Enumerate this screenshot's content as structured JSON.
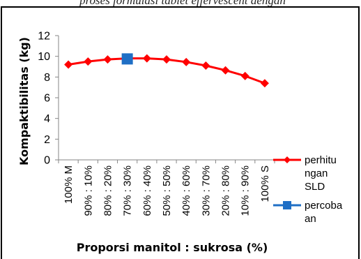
{
  "caption": "proses formulasi tablet effervescent dengan",
  "chart_data": {
    "type": "line",
    "categories": [
      "100% M",
      "90% : 10%",
      "80% : 20%",
      "70% : 30%",
      "60% : 40%",
      "50% : 50%",
      "40% : 60%",
      "30% : 70%",
      "20% : 80%",
      "10% : 90%",
      "100% S"
    ],
    "xlabel": "Proporsi manitol : sukrosa (%)",
    "ylabel": "Kompaktibilitas (kg)",
    "ylim": [
      0,
      12
    ],
    "yticks": [
      0,
      2,
      4,
      6,
      8,
      10,
      12
    ],
    "grid": false,
    "legend_position": "right",
    "series": [
      {
        "name": "perhitungan SLD",
        "legend_lines": [
          "perhitu",
          "ngan",
          "SLD"
        ],
        "marker": "diamond",
        "color": "#ff0000",
        "values": [
          9.2,
          9.5,
          9.7,
          9.8,
          9.8,
          9.7,
          9.45,
          9.1,
          8.65,
          8.1,
          7.4
        ]
      },
      {
        "name": "percobaan",
        "legend_lines": [
          "percoba",
          "an"
        ],
        "marker": "square",
        "color": "#1f6fc5",
        "x_category": "70% : 30%",
        "values": [
          null,
          null,
          null,
          9.75,
          null,
          null,
          null,
          null,
          null,
          null,
          null
        ]
      }
    ]
  }
}
